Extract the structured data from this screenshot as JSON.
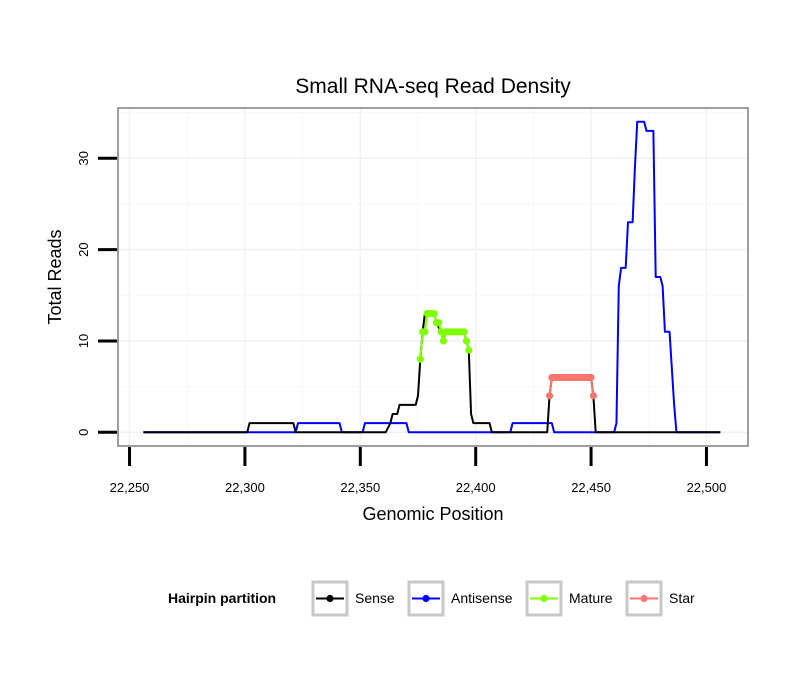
{
  "chart_data": {
    "type": "line",
    "title": "Small RNA-seq Read Density",
    "xlabel": "Genomic Position",
    "ylabel": "Total Reads",
    "xlim": [
      22245,
      22518
    ],
    "ylim": [
      -1.5,
      35.5
    ],
    "x_ticks": [
      22250,
      22300,
      22350,
      22400,
      22450,
      22500
    ],
    "x_tick_labels": [
      "22,250",
      "22,300",
      "22,350",
      "22,400",
      "22,450",
      "22,500"
    ],
    "y_ticks": [
      0,
      10,
      20,
      30
    ],
    "y_tick_labels": [
      "0",
      "10",
      "20",
      "30"
    ],
    "grid": true,
    "legend": {
      "title": "Hairpin partition",
      "position": "bottom",
      "entries": [
        "Sense",
        "Antisense",
        "Mature",
        "Star"
      ]
    },
    "series": [
      {
        "name": "Sense",
        "color": "#000000",
        "points": [
          [
            22256,
            0
          ],
          [
            22301,
            0
          ],
          [
            22302,
            1
          ],
          [
            22321,
            1
          ],
          [
            22322,
            0
          ],
          [
            22361,
            0
          ],
          [
            22363,
            1
          ],
          [
            22364,
            2
          ],
          [
            22366,
            2
          ],
          [
            22367,
            3
          ],
          [
            22374,
            3
          ],
          [
            22375,
            4
          ],
          [
            22376,
            8
          ],
          [
            22377,
            11
          ],
          [
            22378,
            13
          ],
          [
            22382,
            13
          ],
          [
            22383,
            12
          ],
          [
            22385,
            11
          ],
          [
            22386,
            10
          ],
          [
            22387,
            11
          ],
          [
            22395,
            11
          ],
          [
            22396,
            10
          ],
          [
            22397,
            9
          ],
          [
            22398,
            2
          ],
          [
            22399,
            1
          ],
          [
            22406,
            1
          ],
          [
            22407,
            0
          ],
          [
            22431,
            0
          ],
          [
            22432,
            4
          ],
          [
            22433,
            6
          ],
          [
            22450,
            6
          ],
          [
            22451,
            4
          ],
          [
            22452,
            0
          ],
          [
            22506,
            0
          ]
        ]
      },
      {
        "name": "Antisense",
        "color": "#0000ff",
        "points": [
          [
            22256,
            0
          ],
          [
            22322,
            0
          ],
          [
            22323,
            1
          ],
          [
            22341,
            1
          ],
          [
            22342,
            0
          ],
          [
            22351,
            0
          ],
          [
            22352,
            1
          ],
          [
            22370,
            1
          ],
          [
            22371,
            0
          ],
          [
            22415,
            0
          ],
          [
            22416,
            1
          ],
          [
            22433,
            1
          ],
          [
            22434,
            0
          ],
          [
            22460,
            0
          ],
          [
            22461,
            1
          ],
          [
            22462,
            16
          ],
          [
            22463,
            18
          ],
          [
            22465,
            18
          ],
          [
            22466,
            23
          ],
          [
            22468,
            23
          ],
          [
            22469,
            29
          ],
          [
            22470,
            34
          ],
          [
            22473,
            34
          ],
          [
            22474,
            33
          ],
          [
            22477,
            33
          ],
          [
            22478,
            17
          ],
          [
            22480,
            17
          ],
          [
            22481,
            16
          ],
          [
            22482,
            11
          ],
          [
            22484,
            11
          ],
          [
            22485,
            7
          ],
          [
            22486,
            3
          ],
          [
            22487,
            0
          ],
          [
            22506,
            0
          ]
        ]
      },
      {
        "name": "Mature",
        "color": "#7fff00",
        "points": [
          [
            22376,
            8
          ],
          [
            22377,
            11
          ],
          [
            22378,
            11
          ],
          [
            22379,
            13
          ],
          [
            22380,
            13
          ],
          [
            22381,
            13
          ],
          [
            22382,
            13
          ],
          [
            22383,
            12
          ],
          [
            22384,
            12
          ],
          [
            22385,
            11
          ],
          [
            22386,
            10
          ],
          [
            22387,
            11
          ],
          [
            22388,
            11
          ],
          [
            22389,
            11
          ],
          [
            22390,
            11
          ],
          [
            22391,
            11
          ],
          [
            22392,
            11
          ],
          [
            22393,
            11
          ],
          [
            22394,
            11
          ],
          [
            22395,
            11
          ],
          [
            22396,
            10
          ],
          [
            22397,
            9
          ]
        ]
      },
      {
        "name": "Star",
        "color": "#f8766d",
        "points": [
          [
            22432,
            4
          ],
          [
            22433,
            6
          ],
          [
            22434,
            6
          ],
          [
            22435,
            6
          ],
          [
            22436,
            6
          ],
          [
            22437,
            6
          ],
          [
            22438,
            6
          ],
          [
            22439,
            6
          ],
          [
            22440,
            6
          ],
          [
            22441,
            6
          ],
          [
            22442,
            6
          ],
          [
            22443,
            6
          ],
          [
            22444,
            6
          ],
          [
            22445,
            6
          ],
          [
            22446,
            6
          ],
          [
            22447,
            6
          ],
          [
            22448,
            6
          ],
          [
            22449,
            6
          ],
          [
            22450,
            6
          ],
          [
            22451,
            4
          ]
        ]
      }
    ]
  }
}
